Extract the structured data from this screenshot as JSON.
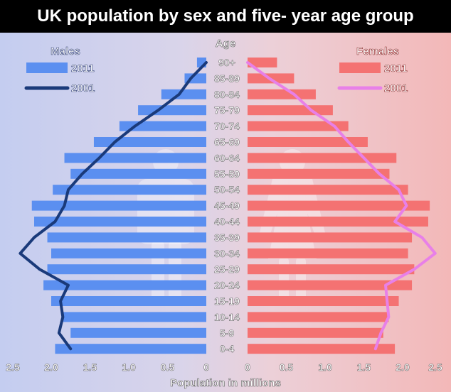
{
  "chart_data": {
    "type": "population-pyramid",
    "title": "UK population by sex and five- year age group",
    "xlabel": "Population in millions",
    "age_axis_label": "Age",
    "categories": [
      "90+",
      "85-89",
      "80-84",
      "75-79",
      "70-74",
      "65-69",
      "60-64",
      "55-59",
      "50-54",
      "45-49",
      "40-44",
      "35-39",
      "30-34",
      "25-29",
      "20-24",
      "15-19",
      "10-14",
      "5-9",
      "0-4"
    ],
    "xlim": [
      0,
      2.5
    ],
    "ticks": [
      "2.5",
      "2.0",
      "1.5",
      "1.0",
      "0.5",
      "0",
      "0",
      "0.5",
      "1.0",
      "1.5",
      "2.0",
      "2.5"
    ],
    "legend_left_title": "Males",
    "legend_right_title": "Females",
    "series": [
      {
        "name": "2011",
        "sex": "Males",
        "kind": "bar",
        "color": "#5b8ff0",
        "values": [
          0.12,
          0.28,
          0.58,
          0.88,
          1.12,
          1.45,
          1.83,
          1.75,
          1.98,
          2.25,
          2.22,
          2.05,
          2.0,
          2.05,
          2.1,
          2.0,
          1.85,
          1.75,
          1.95
        ]
      },
      {
        "name": "2001",
        "sex": "Males",
        "kind": "line",
        "color": "#1a3a7a",
        "values": [
          0.0,
          0.2,
          0.35,
          0.62,
          0.92,
          1.18,
          1.38,
          1.6,
          1.78,
          1.83,
          1.95,
          2.22,
          2.4,
          2.15,
          1.78,
          1.88,
          1.85,
          1.9,
          1.75
        ]
      },
      {
        "name": "2011",
        "sex": "Females",
        "kind": "bar",
        "color": "#f47272",
        "values": [
          0.38,
          0.6,
          0.88,
          1.1,
          1.3,
          1.55,
          1.92,
          1.83,
          2.07,
          2.35,
          2.33,
          2.12,
          2.07,
          2.15,
          2.12,
          1.95,
          1.82,
          1.75,
          1.9
        ]
      },
      {
        "name": "2001",
        "sex": "Females",
        "kind": "line",
        "color": "#e880e8",
        "values": [
          0.0,
          0.28,
          0.6,
          0.82,
          1.12,
          1.3,
          1.5,
          1.7,
          1.95,
          2.05,
          1.9,
          2.25,
          2.42,
          2.15,
          1.78,
          1.8,
          1.82,
          1.72,
          1.65
        ]
      }
    ]
  }
}
